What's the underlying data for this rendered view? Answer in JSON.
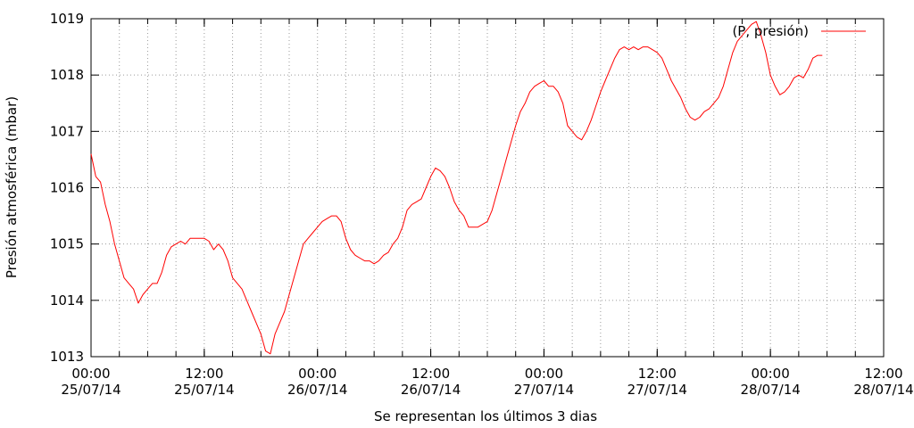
{
  "chart_data": {
    "type": "line",
    "ylabel": "Presión atmosférica (mbar)",
    "xlabel": "Se representan los últimos 3 dias",
    "legend": "top-right",
    "grid": true,
    "ylim": [
      1013,
      1019
    ],
    "yticks": [
      1013,
      1014,
      1015,
      1016,
      1017,
      1018,
      1019
    ],
    "xlim_hours": [
      0,
      84
    ],
    "xticks": [
      {
        "h": 0,
        "time": "00:00",
        "date": "25/07/14"
      },
      {
        "h": 12,
        "time": "12:00",
        "date": "25/07/14"
      },
      {
        "h": 24,
        "time": "00:00",
        "date": "26/07/14"
      },
      {
        "h": 36,
        "time": "12:00",
        "date": "26/07/14"
      },
      {
        "h": 48,
        "time": "00:00",
        "date": "27/07/14"
      },
      {
        "h": 60,
        "time": "12:00",
        "date": "27/07/14"
      },
      {
        "h": 72,
        "time": "00:00",
        "date": "28/07/14"
      },
      {
        "h": 84,
        "time": "12:00",
        "date": "28/07/14"
      }
    ],
    "series": [
      {
        "name": "(P, presión)",
        "color": "#ff0000",
        "points": [
          [
            0.0,
            1016.6
          ],
          [
            0.5,
            1016.2
          ],
          [
            1.0,
            1016.1
          ],
          [
            1.5,
            1015.7
          ],
          [
            2.0,
            1015.4
          ],
          [
            2.5,
            1015.0
          ],
          [
            3.0,
            1014.7
          ],
          [
            3.5,
            1014.4
          ],
          [
            4.0,
            1014.3
          ],
          [
            4.5,
            1014.2
          ],
          [
            5.0,
            1013.95
          ],
          [
            5.5,
            1014.1
          ],
          [
            6.0,
            1014.2
          ],
          [
            6.5,
            1014.3
          ],
          [
            7.0,
            1014.3
          ],
          [
            7.5,
            1014.5
          ],
          [
            8.0,
            1014.8
          ],
          [
            8.5,
            1014.95
          ],
          [
            9.0,
            1015.0
          ],
          [
            9.5,
            1015.05
          ],
          [
            10.0,
            1015.0
          ],
          [
            10.5,
            1015.1
          ],
          [
            11.0,
            1015.1
          ],
          [
            11.5,
            1015.1
          ],
          [
            12.0,
            1015.1
          ],
          [
            12.5,
            1015.05
          ],
          [
            13.0,
            1014.9
          ],
          [
            13.5,
            1015.0
          ],
          [
            14.0,
            1014.9
          ],
          [
            14.5,
            1014.7
          ],
          [
            15.0,
            1014.4
          ],
          [
            15.5,
            1014.3
          ],
          [
            16.0,
            1014.2
          ],
          [
            16.5,
            1014.0
          ],
          [
            17.0,
            1013.8
          ],
          [
            17.5,
            1013.6
          ],
          [
            18.0,
            1013.4
          ],
          [
            18.5,
            1013.1
          ],
          [
            19.0,
            1013.05
          ],
          [
            19.5,
            1013.4
          ],
          [
            20.0,
            1013.6
          ],
          [
            20.5,
            1013.8
          ],
          [
            21.0,
            1014.1
          ],
          [
            21.5,
            1014.4
          ],
          [
            22.0,
            1014.7
          ],
          [
            22.5,
            1015.0
          ],
          [
            23.0,
            1015.1
          ],
          [
            23.5,
            1015.2
          ],
          [
            24.0,
            1015.3
          ],
          [
            24.5,
            1015.4
          ],
          [
            25.0,
            1015.45
          ],
          [
            25.5,
            1015.5
          ],
          [
            26.0,
            1015.5
          ],
          [
            26.5,
            1015.4
          ],
          [
            27.0,
            1015.1
          ],
          [
            27.5,
            1014.9
          ],
          [
            28.0,
            1014.8
          ],
          [
            28.5,
            1014.75
          ],
          [
            29.0,
            1014.7
          ],
          [
            29.5,
            1014.7
          ],
          [
            30.0,
            1014.65
          ],
          [
            30.5,
            1014.7
          ],
          [
            31.0,
            1014.8
          ],
          [
            31.5,
            1014.85
          ],
          [
            32.0,
            1015.0
          ],
          [
            32.5,
            1015.1
          ],
          [
            33.0,
            1015.3
          ],
          [
            33.5,
            1015.6
          ],
          [
            34.0,
            1015.7
          ],
          [
            34.5,
            1015.75
          ],
          [
            35.0,
            1015.8
          ],
          [
            35.5,
            1016.0
          ],
          [
            36.0,
            1016.2
          ],
          [
            36.5,
            1016.35
          ],
          [
            37.0,
            1016.3
          ],
          [
            37.5,
            1016.2
          ],
          [
            38.0,
            1016.0
          ],
          [
            38.5,
            1015.75
          ],
          [
            39.0,
            1015.6
          ],
          [
            39.5,
            1015.5
          ],
          [
            40.0,
            1015.3
          ],
          [
            40.5,
            1015.3
          ],
          [
            41.0,
            1015.3
          ],
          [
            41.5,
            1015.35
          ],
          [
            42.0,
            1015.4
          ],
          [
            42.5,
            1015.6
          ],
          [
            43.0,
            1015.9
          ],
          [
            43.5,
            1016.2
          ],
          [
            44.0,
            1016.5
          ],
          [
            44.5,
            1016.8
          ],
          [
            45.0,
            1017.1
          ],
          [
            45.5,
            1017.35
          ],
          [
            46.0,
            1017.5
          ],
          [
            46.5,
            1017.7
          ],
          [
            47.0,
            1017.8
          ],
          [
            47.5,
            1017.85
          ],
          [
            48.0,
            1017.9
          ],
          [
            48.5,
            1017.8
          ],
          [
            49.0,
            1017.8
          ],
          [
            49.5,
            1017.7
          ],
          [
            50.0,
            1017.5
          ],
          [
            50.5,
            1017.1
          ],
          [
            51.0,
            1017.0
          ],
          [
            51.5,
            1016.9
          ],
          [
            52.0,
            1016.85
          ],
          [
            52.5,
            1017.0
          ],
          [
            53.0,
            1017.2
          ],
          [
            53.5,
            1017.45
          ],
          [
            54.0,
            1017.7
          ],
          [
            54.5,
            1017.9
          ],
          [
            55.0,
            1018.1
          ],
          [
            55.5,
            1018.3
          ],
          [
            56.0,
            1018.45
          ],
          [
            56.5,
            1018.5
          ],
          [
            57.0,
            1018.45
          ],
          [
            57.5,
            1018.5
          ],
          [
            58.0,
            1018.45
          ],
          [
            58.5,
            1018.5
          ],
          [
            59.0,
            1018.5
          ],
          [
            59.5,
            1018.45
          ],
          [
            60.0,
            1018.4
          ],
          [
            60.5,
            1018.3
          ],
          [
            61.0,
            1018.1
          ],
          [
            61.5,
            1017.9
          ],
          [
            62.0,
            1017.75
          ],
          [
            62.5,
            1017.6
          ],
          [
            63.0,
            1017.4
          ],
          [
            63.5,
            1017.25
          ],
          [
            64.0,
            1017.2
          ],
          [
            64.5,
            1017.25
          ],
          [
            65.0,
            1017.35
          ],
          [
            65.5,
            1017.4
          ],
          [
            66.0,
            1017.5
          ],
          [
            66.5,
            1017.6
          ],
          [
            67.0,
            1017.8
          ],
          [
            67.5,
            1018.1
          ],
          [
            68.0,
            1018.4
          ],
          [
            68.5,
            1018.6
          ],
          [
            69.0,
            1018.7
          ],
          [
            69.5,
            1018.8
          ],
          [
            70.0,
            1018.9
          ],
          [
            70.5,
            1018.95
          ],
          [
            71.0,
            1018.7
          ],
          [
            71.5,
            1018.4
          ],
          [
            72.0,
            1018.0
          ],
          [
            72.5,
            1017.8
          ],
          [
            73.0,
            1017.65
          ],
          [
            73.5,
            1017.7
          ],
          [
            74.0,
            1017.8
          ],
          [
            74.5,
            1017.95
          ],
          [
            75.0,
            1018.0
          ],
          [
            75.5,
            1017.95
          ],
          [
            76.0,
            1018.1
          ],
          [
            76.5,
            1018.3
          ],
          [
            77.0,
            1018.35
          ],
          [
            77.5,
            1018.35
          ]
        ]
      }
    ]
  }
}
